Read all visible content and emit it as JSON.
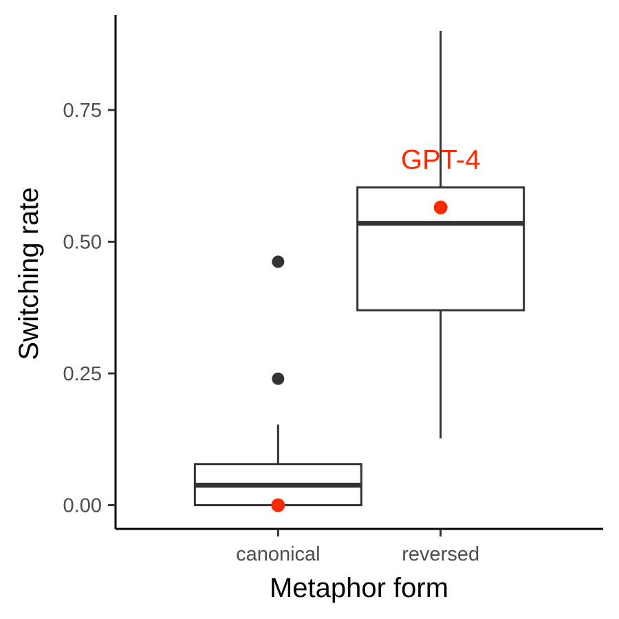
{
  "chart_data": {
    "type": "boxplot",
    "title": "",
    "xlabel": "Metaphor form",
    "ylabel": "Switching rate",
    "categories": [
      "canonical",
      "reversed"
    ],
    "ylim": [
      -0.045,
      0.93
    ],
    "yticks": [
      0.0,
      0.25,
      0.5,
      0.75
    ],
    "ytick_labels": [
      "0.00",
      "0.25",
      "0.50",
      "0.75"
    ],
    "grid": false,
    "legend": "none",
    "boxes": [
      {
        "category": "canonical",
        "whisker_low": 0.0,
        "q1": 0.0,
        "median": 0.038,
        "q3": 0.078,
        "whisker_high": 0.153,
        "outliers": [
          0.24,
          0.462
        ]
      },
      {
        "category": "reversed",
        "whisker_low": 0.127,
        "q1": 0.37,
        "median": 0.535,
        "q3": 0.603,
        "whisker_high": 0.9,
        "outliers": []
      }
    ],
    "highlight": {
      "label": "GPT-4",
      "color": "#ff2a00",
      "points": [
        {
          "category": "canonical",
          "value": 0.0
        },
        {
          "category": "reversed",
          "value": 0.565
        }
      ],
      "label_category": "reversed"
    },
    "colors": {
      "box": "#333333",
      "outlier": "#333333",
      "axis": "#000000"
    }
  }
}
